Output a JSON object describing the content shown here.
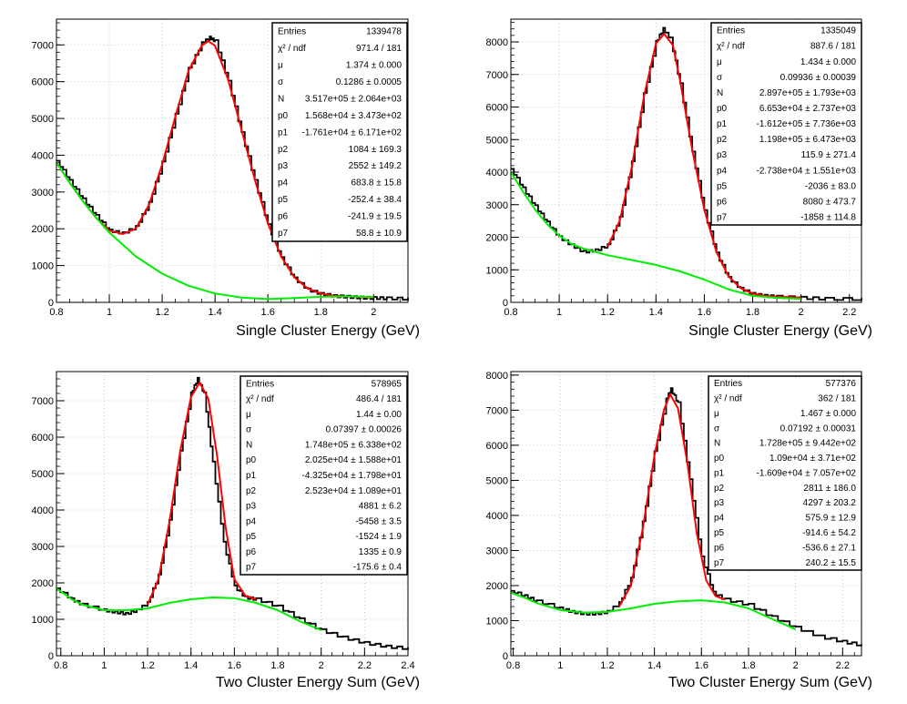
{
  "chart_data": [
    {
      "type": "line",
      "xlabel": "Single Cluster Energy   (GeV)",
      "ylabel": "",
      "xlim": [
        0.8,
        2.13
      ],
      "ylim": [
        0,
        7700
      ],
      "x_ticks": [
        "0.8",
        "1",
        "1.2",
        "1.4",
        "1.6",
        "1.8",
        "2"
      ],
      "y_ticks": [
        "0",
        "1000",
        "2000",
        "3000",
        "4000",
        "5000",
        "6000",
        "7000"
      ],
      "grid": true,
      "stats_box": {
        "placement": "top-right",
        "rows": [
          {
            "label": "Entries",
            "value": "1339478"
          },
          {
            "label": "χ² / ndf",
            "value": "971.4 / 181"
          },
          {
            "label": "μ",
            "value": "1.374 ± 0.000"
          },
          {
            "label": "σ",
            "value": "0.1286 ± 0.0005"
          },
          {
            "label": "N",
            "value": "3.517e+05 ± 2.064e+03"
          },
          {
            "label": "p0",
            "value": "1.568e+04 ± 3.473e+02"
          },
          {
            "label": "p1",
            "value": "-1.761e+04 ± 6.171e+02"
          },
          {
            "label": "p2",
            "value": "1084 ± 169.3"
          },
          {
            "label": "p3",
            "value": "2552 ± 149.2"
          },
          {
            "label": "p4",
            "value": "683.8 ± 15.8"
          },
          {
            "label": "p5",
            "value": "-252.4 ± 38.4"
          },
          {
            "label": "p6",
            "value": "-241.9 ± 19.5"
          },
          {
            "label": "p7",
            "value": "58.8 ± 10.9"
          }
        ]
      },
      "series": [
        {
          "role": "histogram",
          "color": "#000000",
          "x": [
            0.8,
            0.85,
            0.9,
            0.95,
            1.0,
            1.05,
            1.1,
            1.15,
            1.2,
            1.25,
            1.3,
            1.35,
            1.38,
            1.4,
            1.45,
            1.5,
            1.55,
            1.6,
            1.65,
            1.7,
            1.75,
            1.8,
            1.85,
            1.9,
            1.95,
            2.0,
            2.05,
            2.13
          ],
          "y": [
            3850,
            3300,
            2800,
            2350,
            1950,
            1880,
            2050,
            2700,
            3800,
            5100,
            6350,
            7050,
            7200,
            7100,
            6000,
            4600,
            3300,
            2100,
            1200,
            650,
            350,
            230,
            170,
            150,
            130,
            120,
            110,
            100
          ]
        },
        {
          "role": "total fit",
          "color": "#ff0000",
          "x": [
            0.8,
            0.85,
            0.9,
            0.95,
            1.0,
            1.05,
            1.1,
            1.15,
            1.2,
            1.25,
            1.3,
            1.35,
            1.374,
            1.4,
            1.45,
            1.5,
            1.55,
            1.6,
            1.65,
            1.7,
            1.75,
            1.8,
            1.85,
            1.9,
            1.95,
            2.0
          ],
          "y": [
            3800,
            3250,
            2750,
            2300,
            1950,
            1860,
            2000,
            2650,
            3750,
            5050,
            6300,
            6980,
            7100,
            6980,
            6050,
            4700,
            3350,
            2150,
            1250,
            680,
            380,
            240,
            180,
            160,
            140,
            130
          ]
        },
        {
          "role": "background fit",
          "color": "#00ee00",
          "x": [
            0.8,
            0.85,
            0.9,
            0.95,
            1.0,
            1.1,
            1.2,
            1.3,
            1.4,
            1.5,
            1.6,
            1.7,
            1.8,
            1.9,
            2.0
          ],
          "y": [
            3800,
            3250,
            2750,
            2300,
            1900,
            1250,
            780,
            450,
            240,
            130,
            90,
            120,
            150,
            160,
            140
          ]
        }
      ]
    },
    {
      "type": "line",
      "xlabel": "Single Cluster Energy   (GeV)",
      "ylabel": "",
      "xlim": [
        0.8,
        2.25
      ],
      "ylim": [
        0,
        8700
      ],
      "x_ticks": [
        "0.8",
        "1",
        "1.2",
        "1.4",
        "1.6",
        "1.8",
        "2",
        "2.2"
      ],
      "y_ticks": [
        "0",
        "1000",
        "2000",
        "3000",
        "4000",
        "5000",
        "6000",
        "7000",
        "8000"
      ],
      "grid": true,
      "stats_box": {
        "placement": "top-right",
        "rows": [
          {
            "label": "Entries",
            "value": "1335049"
          },
          {
            "label": "χ² / ndf",
            "value": "887.6 / 181"
          },
          {
            "label": "μ",
            "value": "1.434 ± 0.000"
          },
          {
            "label": "σ",
            "value": "0.09936 ± 0.00039"
          },
          {
            "label": "N",
            "value": "2.897e+05 ± 1.793e+03"
          },
          {
            "label": "p0",
            "value": "6.653e+04 ± 2.737e+03"
          },
          {
            "label": "p1",
            "value": "-1.612e+05 ± 7.736e+03"
          },
          {
            "label": "p2",
            "value": "1.198e+05 ± 6.473e+03"
          },
          {
            "label": "p3",
            "value": "115.9 ± 271.4"
          },
          {
            "label": "p4",
            "value": "-2.738e+04 ± 1.551e+03"
          },
          {
            "label": "p5",
            "value": "-2036 ± 83.0"
          },
          {
            "label": "p6",
            "value": "8080 ± 473.7"
          },
          {
            "label": "p7",
            "value": "-1858 ± 114.8"
          }
        ]
      },
      "series": [
        {
          "role": "histogram",
          "color": "#000000",
          "x": [
            0.8,
            0.85,
            0.9,
            0.95,
            1.0,
            1.05,
            1.1,
            1.15,
            1.2,
            1.25,
            1.3,
            1.35,
            1.4,
            1.43,
            1.46,
            1.5,
            1.55,
            1.6,
            1.65,
            1.7,
            1.75,
            1.8,
            1.85,
            1.9,
            2.0,
            2.1,
            2.25
          ],
          "y": [
            4100,
            3500,
            2950,
            2450,
            2000,
            1750,
            1550,
            1600,
            1750,
            2600,
            4300,
            6400,
            8000,
            8400,
            8100,
            6700,
            4600,
            2800,
            1500,
            750,
            420,
            260,
            200,
            170,
            140,
            110,
            100
          ]
        },
        {
          "role": "total fit",
          "color": "#ff0000",
          "x": [
            1.2,
            1.25,
            1.3,
            1.35,
            1.4,
            1.434,
            1.47,
            1.5,
            1.55,
            1.6,
            1.65,
            1.7,
            1.75,
            1.8,
            1.85,
            1.9,
            2.0
          ],
          "y": [
            1700,
            2500,
            4150,
            6300,
            7950,
            8250,
            7900,
            6800,
            4700,
            2850,
            1550,
            800,
            440,
            270,
            200,
            170,
            150
          ]
        },
        {
          "role": "background fit",
          "color": "#00ee00",
          "x": [
            0.8,
            0.85,
            0.9,
            0.95,
            1.0,
            1.05,
            1.1,
            1.2,
            1.3,
            1.4,
            1.5,
            1.6,
            1.7,
            1.8,
            1.9,
            2.0
          ],
          "y": [
            4000,
            3400,
            2850,
            2400,
            2050,
            1800,
            1650,
            1450,
            1300,
            1150,
            950,
            700,
            400,
            200,
            140,
            110
          ]
        }
      ]
    },
    {
      "type": "line",
      "xlabel": "Two Cluster Energy Sum  (GeV)",
      "ylabel": "",
      "xlim": [
        0.78,
        2.4
      ],
      "ylim": [
        0,
        7800
      ],
      "x_ticks": [
        "0.8",
        "1",
        "1.2",
        "1.4",
        "1.6",
        "1.8",
        "2",
        "2.2",
        "2.4"
      ],
      "y_ticks": [
        "0",
        "1000",
        "2000",
        "3000",
        "4000",
        "5000",
        "6000",
        "7000"
      ],
      "grid": true,
      "stats_box": {
        "placement": "top-right",
        "rows": [
          {
            "label": "Entries",
            "value": "578965"
          },
          {
            "label": "χ² / ndf",
            "value": "486.4 / 181"
          },
          {
            "label": "μ",
            "value": "1.44 ± 0.00"
          },
          {
            "label": "σ",
            "value": "0.07397 ± 0.00026"
          },
          {
            "label": "N",
            "value": "1.748e+05 ± 6.338e+02"
          },
          {
            "label": "p0",
            "value": "2.025e+04 ± 1.588e+01"
          },
          {
            "label": "p1",
            "value": "-4.325e+04 ± 1.798e+01"
          },
          {
            "label": "p2",
            "value": "2.523e+04 ± 1.089e+01"
          },
          {
            "label": "p3",
            "value": "4881 ± 6.2"
          },
          {
            "label": "p4",
            "value": "-5458 ± 3.5"
          },
          {
            "label": "p5",
            "value": "-1524 ± 1.9"
          },
          {
            "label": "p6",
            "value": "1335 ± 0.9"
          },
          {
            "label": "p7",
            "value": "-175.6 ± 0.4"
          }
        ]
      },
      "series": [
        {
          "role": "histogram",
          "color": "#000000",
          "x": [
            0.78,
            0.85,
            0.9,
            1.0,
            1.05,
            1.1,
            1.15,
            1.2,
            1.25,
            1.3,
            1.35,
            1.4,
            1.43,
            1.46,
            1.5,
            1.55,
            1.6,
            1.65,
            1.7,
            1.8,
            1.9,
            2.0,
            2.1,
            2.2,
            2.3,
            2.4
          ],
          "y": [
            1850,
            1550,
            1400,
            1250,
            1200,
            1150,
            1250,
            1450,
            2200,
            3700,
            5600,
            7200,
            7600,
            7200,
            5300,
            3100,
            1900,
            1600,
            1550,
            1350,
            1000,
            700,
            500,
            350,
            250,
            200
          ]
        },
        {
          "role": "total fit",
          "color": "#ff0000",
          "x": [
            1.2,
            1.25,
            1.3,
            1.35,
            1.4,
            1.44,
            1.48,
            1.52,
            1.56,
            1.6,
            1.65,
            1.7
          ],
          "y": [
            1400,
            2100,
            3650,
            5600,
            7100,
            7500,
            7050,
            5500,
            3500,
            2100,
            1650,
            1550
          ]
        },
        {
          "role": "background fit",
          "color": "#00ee00",
          "x": [
            0.78,
            0.85,
            0.9,
            1.0,
            1.1,
            1.2,
            1.3,
            1.4,
            1.5,
            1.6,
            1.7,
            1.8,
            1.9,
            2.0
          ],
          "y": [
            1850,
            1550,
            1400,
            1250,
            1250,
            1300,
            1450,
            1550,
            1600,
            1580,
            1450,
            1250,
            950,
            700
          ]
        }
      ]
    },
    {
      "type": "line",
      "xlabel": "Two Cluster Energy Sum  (GeV)",
      "ylabel": "",
      "xlim": [
        0.79,
        2.28
      ],
      "ylim": [
        0,
        8100
      ],
      "x_ticks": [
        "0.8",
        "1",
        "1.2",
        "1.4",
        "1.6",
        "1.8",
        "2",
        "2.2"
      ],
      "y_ticks": [
        "0",
        "1000",
        "2000",
        "3000",
        "4000",
        "5000",
        "6000",
        "7000",
        "8000"
      ],
      "grid": true,
      "stats_box": {
        "placement": "top-right",
        "rows": [
          {
            "label": "Entries",
            "value": "577376"
          },
          {
            "label": "χ² / ndf",
            "value": "362 / 181"
          },
          {
            "label": "μ",
            "value": "1.467 ± 0.000"
          },
          {
            "label": "σ",
            "value": "0.07192 ± 0.00031"
          },
          {
            "label": "N",
            "value": "1.728e+05 ± 9.442e+02"
          },
          {
            "label": "p0",
            "value": "1.09e+04 ± 3.71e+02"
          },
          {
            "label": "p1",
            "value": "-1.609e+04 ± 7.057e+02"
          },
          {
            "label": "p2",
            "value": "2811 ± 186.0"
          },
          {
            "label": "p3",
            "value": "4297 ± 203.2"
          },
          {
            "label": "p4",
            "value": "575.9 ± 12.9"
          },
          {
            "label": "p5",
            "value": "-914.6 ± 54.2"
          },
          {
            "label": "p6",
            "value": "-536.6 ± 27.1"
          },
          {
            "label": "p7",
            "value": "240.2 ± 15.5"
          }
        ]
      },
      "series": [
        {
          "role": "histogram",
          "color": "#000000",
          "x": [
            0.79,
            0.85,
            0.9,
            1.0,
            1.05,
            1.1,
            1.15,
            1.2,
            1.25,
            1.3,
            1.35,
            1.4,
            1.45,
            1.47,
            1.5,
            1.55,
            1.6,
            1.65,
            1.7,
            1.8,
            1.9,
            2.0,
            2.1,
            2.2,
            2.28
          ],
          "y": [
            1850,
            1700,
            1550,
            1350,
            1250,
            1200,
            1200,
            1250,
            1500,
            2200,
            3800,
            5800,
            7300,
            7600,
            7200,
            5000,
            2800,
            1800,
            1600,
            1450,
            1100,
            800,
            550,
            400,
            300
          ]
        },
        {
          "role": "total fit",
          "color": "#ff0000",
          "x": [
            1.25,
            1.3,
            1.35,
            1.4,
            1.44,
            1.467,
            1.5,
            1.54,
            1.58,
            1.62,
            1.66,
            1.7
          ],
          "y": [
            1400,
            2000,
            3600,
            5700,
            7000,
            7450,
            7050,
            5500,
            3500,
            2150,
            1700,
            1600
          ]
        },
        {
          "role": "background fit",
          "color": "#00ee00",
          "x": [
            0.79,
            0.85,
            0.9,
            1.0,
            1.1,
            1.2,
            1.3,
            1.4,
            1.5,
            1.6,
            1.7,
            1.8,
            1.9,
            2.0
          ],
          "y": [
            1800,
            1650,
            1500,
            1300,
            1230,
            1250,
            1350,
            1480,
            1550,
            1580,
            1520,
            1350,
            1050,
            750
          ]
        }
      ]
    }
  ]
}
